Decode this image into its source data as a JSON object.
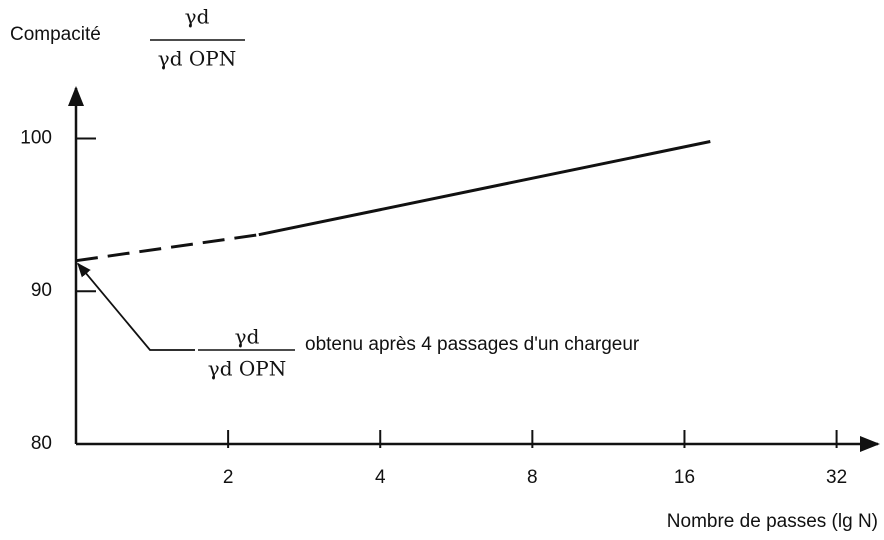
{
  "chart_data": {
    "type": "line",
    "y_label": {
      "text": "Compacité",
      "numerator": "γd",
      "denominator": "γd OPN"
    },
    "x_label": "Nombre de passes (lg N)",
    "xscale": "log",
    "xlim": [
      1,
      39
    ],
    "ylim": [
      80,
      103.5
    ],
    "xticks": [
      2,
      4,
      8,
      16,
      32
    ],
    "yticks": [
      80,
      90,
      100
    ],
    "color": "#111111",
    "series": [
      {
        "x": [
          1,
          2.3
        ],
        "values": [
          92,
          93.7
        ],
        "dashed": true
      },
      {
        "x": [
          2.3,
          18
        ],
        "values": [
          93.7,
          99.8
        ],
        "dashed": false
      }
    ],
    "annotation": {
      "numerator": "γd",
      "denominator": "γd OPN",
      "text": "obtenu après 4 passages d'un chargeur"
    }
  }
}
